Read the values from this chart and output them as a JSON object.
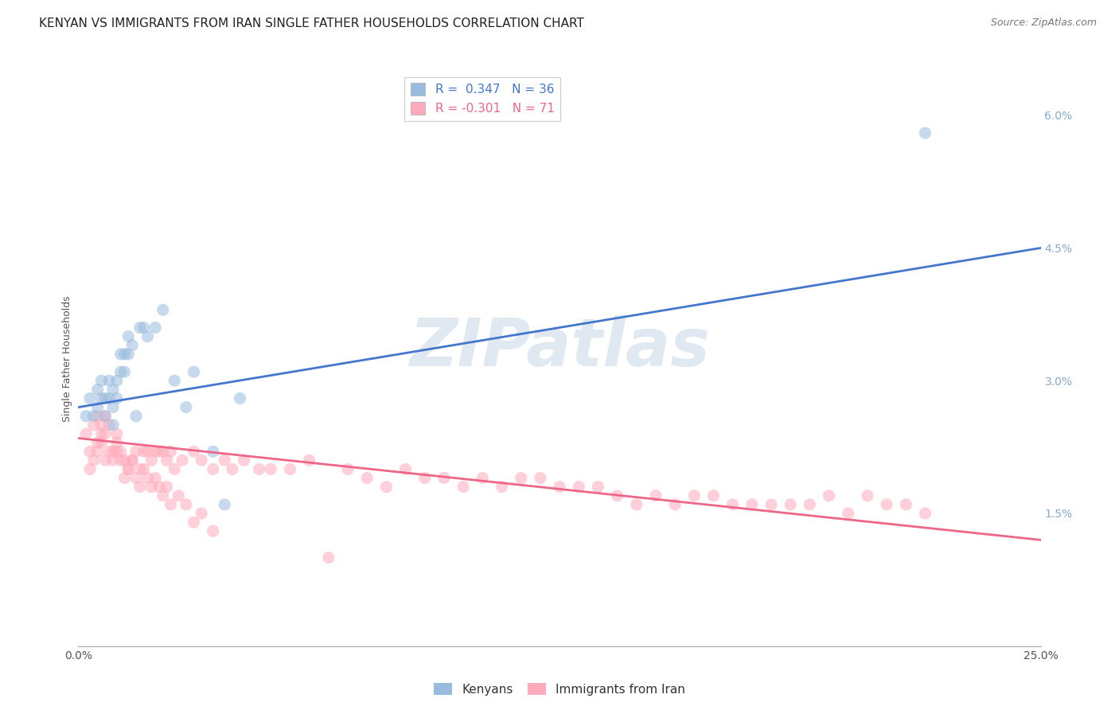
{
  "title": "KENYAN VS IMMIGRANTS FROM IRAN SINGLE FATHER HOUSEHOLDS CORRELATION CHART",
  "source": "Source: ZipAtlas.com",
  "ylabel": "Single Father Households",
  "xlim": [
    0.0,
    0.25
  ],
  "ylim": [
    0.0,
    0.065
  ],
  "xticks": [
    0.0,
    0.05,
    0.1,
    0.15,
    0.2,
    0.25
  ],
  "xticklabels": [
    "0.0%",
    "",
    "",
    "",
    "",
    "25.0%"
  ],
  "yticks_right": [
    0.015,
    0.03,
    0.045,
    0.06
  ],
  "yticklabels_right": [
    "1.5%",
    "3.0%",
    "4.5%",
    "6.0%"
  ],
  "legend_r1": "R =  0.347   N = 36",
  "legend_r2": "R = -0.301   N = 71",
  "blue_scatter_color": "#99BBDD",
  "pink_scatter_color": "#FFAABB",
  "blue_line_color": "#4477CC",
  "pink_line_color": "#EE6688",
  "watermark_text": "ZIPatlas",
  "kenyan_x": [
    0.002,
    0.003,
    0.004,
    0.005,
    0.005,
    0.006,
    0.006,
    0.007,
    0.007,
    0.008,
    0.008,
    0.009,
    0.009,
    0.009,
    0.01,
    0.01,
    0.011,
    0.011,
    0.012,
    0.012,
    0.013,
    0.013,
    0.014,
    0.015,
    0.016,
    0.017,
    0.018,
    0.02,
    0.022,
    0.025,
    0.028,
    0.03,
    0.035,
    0.038,
    0.042,
    0.22
  ],
  "kenyan_y": [
    0.026,
    0.028,
    0.026,
    0.029,
    0.027,
    0.03,
    0.028,
    0.028,
    0.026,
    0.03,
    0.028,
    0.029,
    0.027,
    0.025,
    0.03,
    0.028,
    0.033,
    0.031,
    0.033,
    0.031,
    0.035,
    0.033,
    0.034,
    0.026,
    0.036,
    0.036,
    0.035,
    0.036,
    0.038,
    0.03,
    0.027,
    0.031,
    0.022,
    0.016,
    0.028,
    0.058
  ],
  "iran_x": [
    0.002,
    0.003,
    0.004,
    0.005,
    0.005,
    0.006,
    0.006,
    0.007,
    0.007,
    0.008,
    0.009,
    0.01,
    0.01,
    0.011,
    0.012,
    0.013,
    0.014,
    0.015,
    0.016,
    0.017,
    0.018,
    0.019,
    0.02,
    0.021,
    0.022,
    0.023,
    0.024,
    0.025,
    0.027,
    0.03,
    0.032,
    0.035,
    0.038,
    0.04,
    0.043,
    0.047,
    0.05,
    0.055,
    0.06,
    0.065,
    0.07,
    0.075,
    0.08,
    0.085,
    0.09,
    0.095,
    0.1,
    0.105,
    0.11,
    0.115,
    0.12,
    0.125,
    0.13,
    0.135,
    0.14,
    0.145,
    0.15,
    0.155,
    0.16,
    0.165,
    0.17,
    0.175,
    0.18,
    0.185,
    0.19,
    0.195,
    0.2,
    0.205,
    0.21,
    0.215,
    0.22
  ],
  "iran_y": [
    0.024,
    0.022,
    0.025,
    0.023,
    0.026,
    0.024,
    0.025,
    0.026,
    0.024,
    0.025,
    0.022,
    0.024,
    0.022,
    0.022,
    0.021,
    0.02,
    0.021,
    0.022,
    0.02,
    0.022,
    0.022,
    0.021,
    0.022,
    0.022,
    0.022,
    0.021,
    0.022,
    0.02,
    0.021,
    0.022,
    0.021,
    0.02,
    0.021,
    0.02,
    0.021,
    0.02,
    0.02,
    0.02,
    0.021,
    0.01,
    0.02,
    0.019,
    0.018,
    0.02,
    0.019,
    0.019,
    0.018,
    0.019,
    0.018,
    0.019,
    0.019,
    0.018,
    0.018,
    0.018,
    0.017,
    0.016,
    0.017,
    0.016,
    0.017,
    0.017,
    0.016,
    0.016,
    0.016,
    0.016,
    0.016,
    0.017,
    0.015,
    0.017,
    0.016,
    0.016,
    0.015
  ],
  "iran_x_extra": [
    0.003,
    0.004,
    0.005,
    0.006,
    0.007,
    0.008,
    0.009,
    0.01,
    0.011,
    0.012,
    0.013,
    0.014,
    0.015,
    0.016,
    0.017,
    0.018,
    0.019,
    0.02,
    0.021,
    0.022,
    0.023,
    0.024,
    0.026,
    0.028,
    0.03,
    0.032,
    0.035
  ],
  "iran_y_extra": [
    0.02,
    0.021,
    0.022,
    0.023,
    0.021,
    0.022,
    0.021,
    0.023,
    0.021,
    0.019,
    0.02,
    0.021,
    0.019,
    0.018,
    0.02,
    0.019,
    0.018,
    0.019,
    0.018,
    0.017,
    0.018,
    0.016,
    0.017,
    0.016,
    0.014,
    0.015,
    0.013
  ],
  "blue_line_x0": 0.0,
  "blue_line_x1": 0.25,
  "blue_line_y0": 0.027,
  "blue_line_y1": 0.045,
  "pink_line_x0": 0.0,
  "pink_line_x1": 0.25,
  "pink_line_y0": 0.0235,
  "pink_line_y1": 0.012,
  "background_color": "#FFFFFF",
  "grid_color": "#CCCCCC",
  "title_fontsize": 11,
  "source_fontsize": 9,
  "axis_label_fontsize": 9,
  "tick_fontsize": 10,
  "scatter_size": 120,
  "scatter_alpha": 0.55,
  "line_width": 2.0
}
